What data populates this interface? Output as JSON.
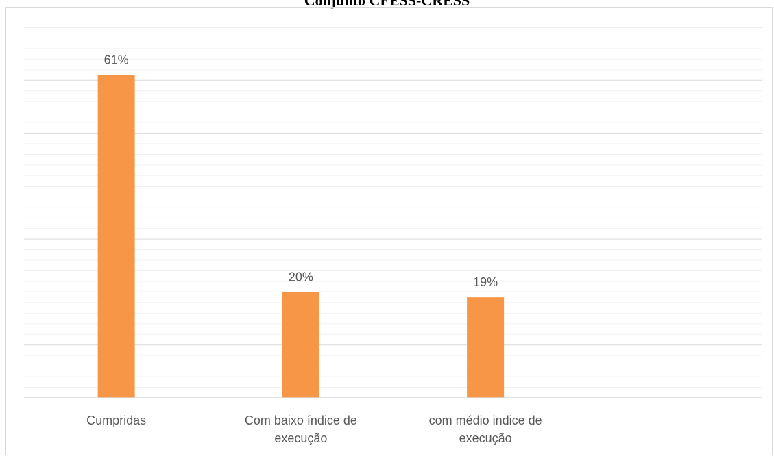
{
  "chart_data": {
    "type": "bar",
    "title": "Conjunto CFESS-CRESS",
    "categories": [
      [
        "Cumpridas"
      ],
      [
        "Com baixo índice de",
        "execução"
      ],
      [
        "com médio indice de",
        "execução"
      ],
      [
        ""
      ]
    ],
    "values": [
      61,
      20,
      19,
      null
    ],
    "data_labels": [
      "61%",
      "20%",
      "19%",
      ""
    ],
    "ylim": [
      0,
      70
    ],
    "major_gridlines": true,
    "minor_gridlines": true,
    "legend": "none",
    "colors": {
      "bar": "#F79646",
      "gridline_major": "#D9D9D9",
      "gridline_minor": "#F2F2F2",
      "axis": "#D9D9D9",
      "text": "#595959"
    }
  }
}
